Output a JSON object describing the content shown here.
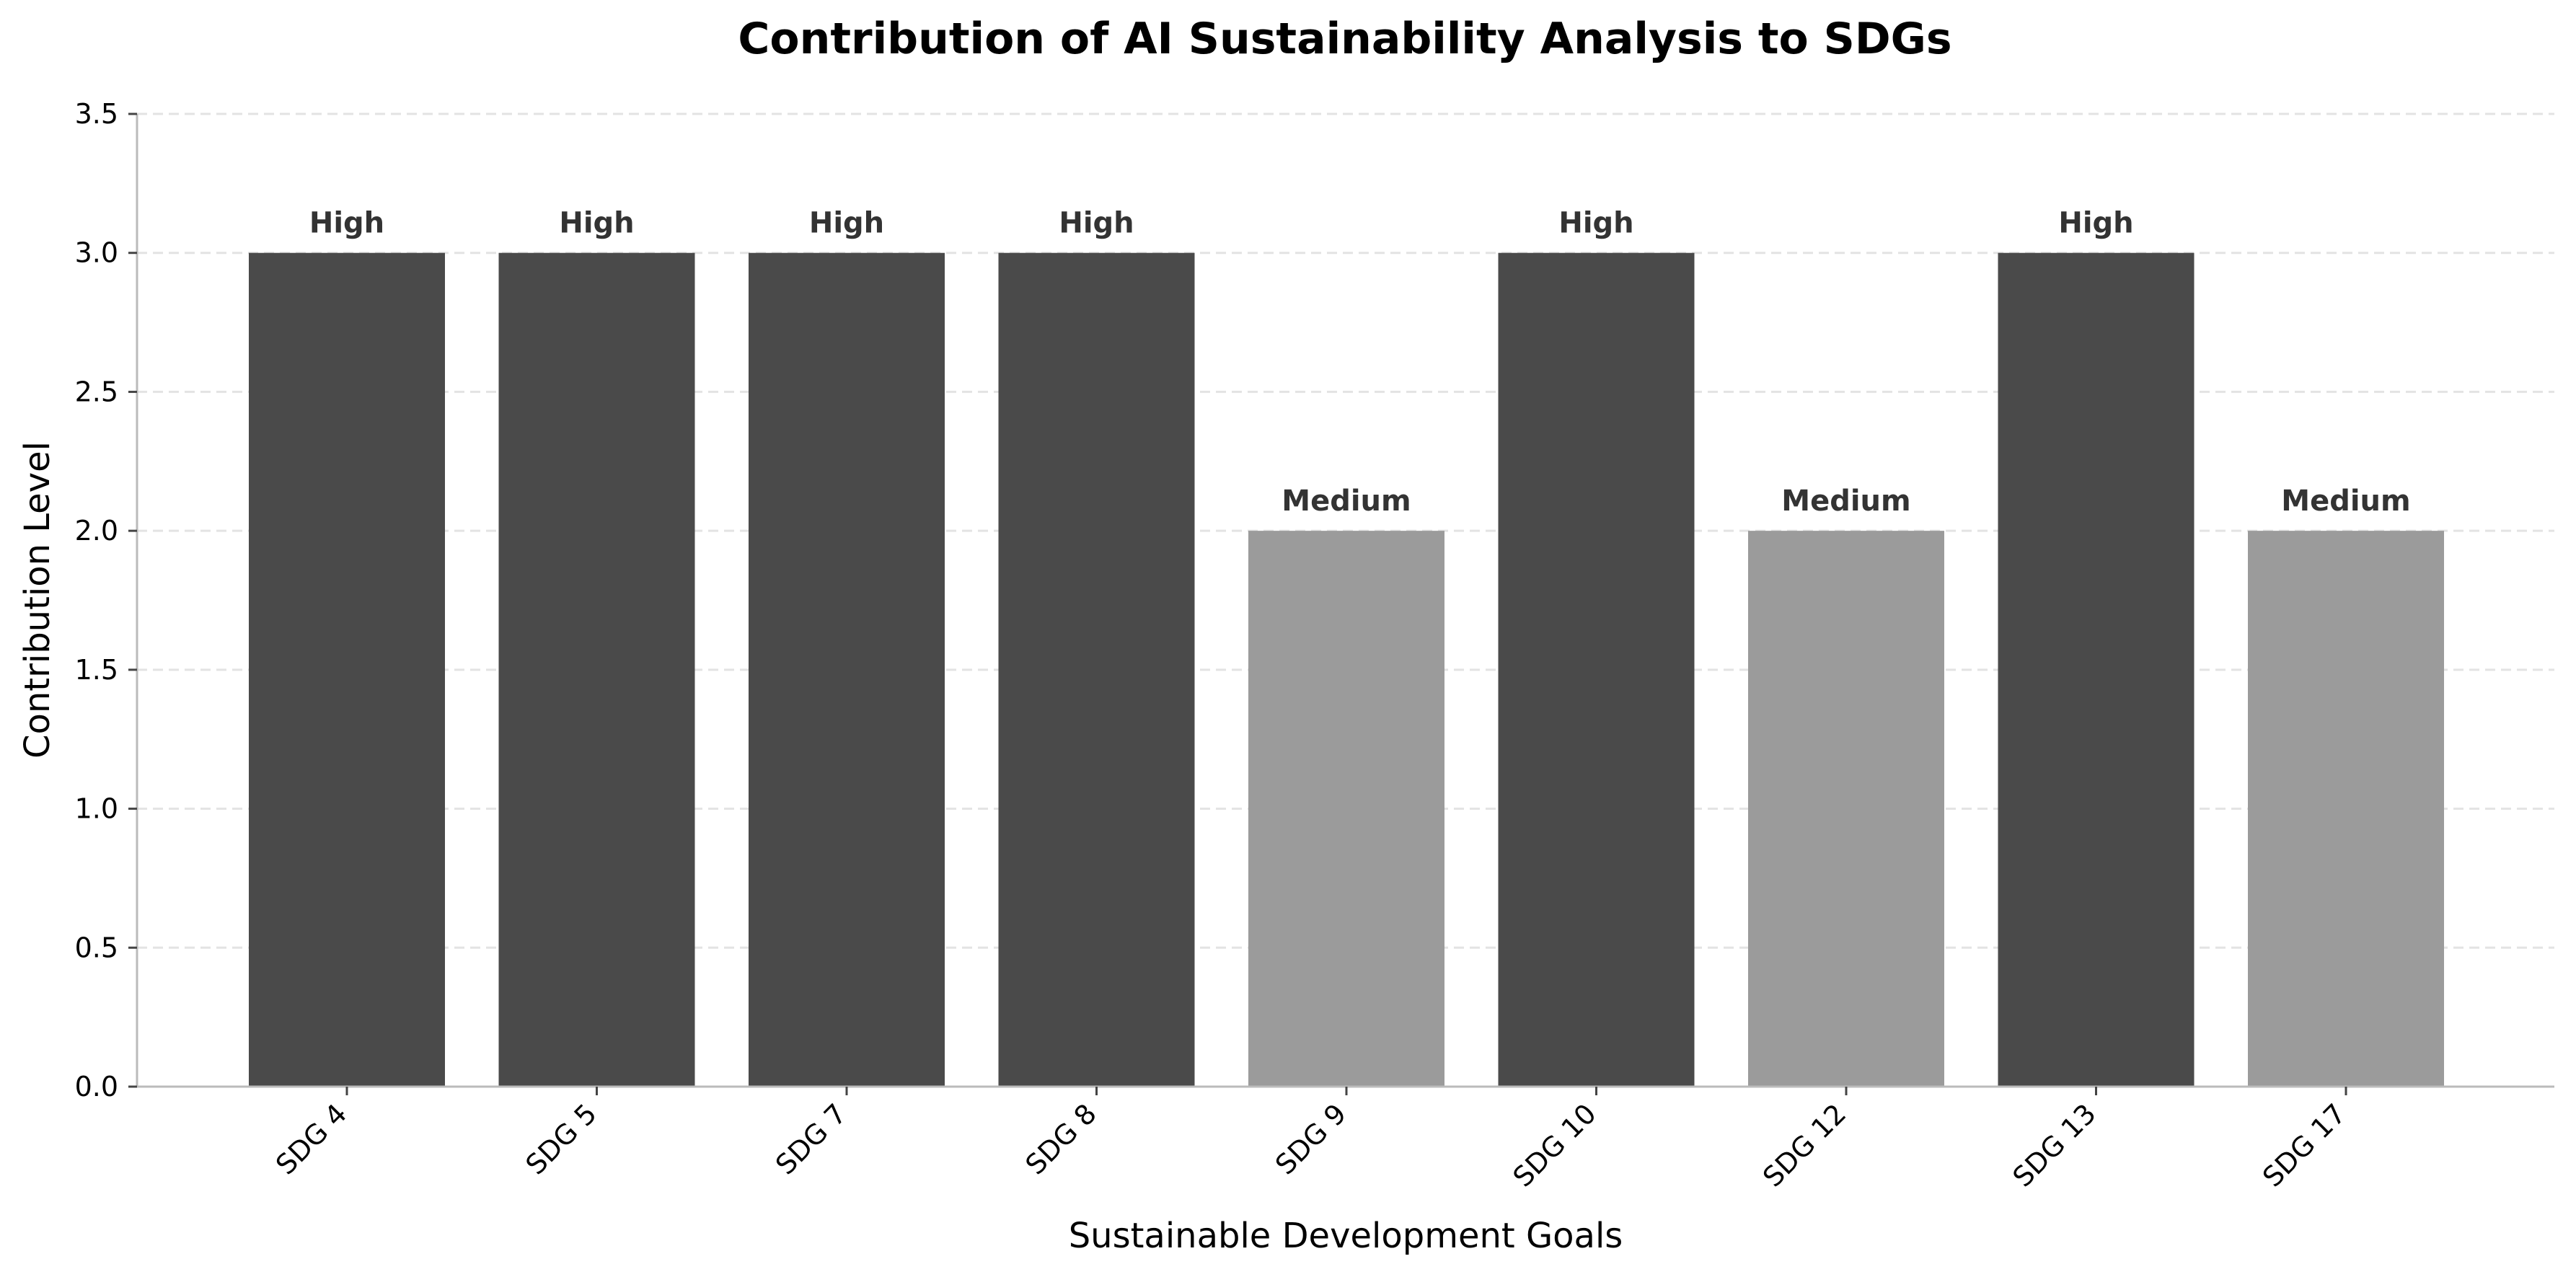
{
  "chart_data": {
    "type": "bar",
    "title": "Contribution of AI Sustainability Analysis to SDGs",
    "xlabel": "Sustainable Development Goals",
    "ylabel": "Contribution Level",
    "categories": [
      "SDG 4",
      "SDG 5",
      "SDG 7",
      "SDG 8",
      "SDG 9",
      "SDG 10",
      "SDG 12",
      "SDG 13",
      "SDG 17"
    ],
    "values": [
      3,
      3,
      3,
      3,
      2,
      3,
      2,
      3,
      2
    ],
    "labels": [
      "High",
      "High",
      "High",
      "High",
      "Medium",
      "High",
      "Medium",
      "High",
      "Medium"
    ],
    "ylim": [
      0,
      3.5
    ],
    "yticks": [
      0,
      0.5,
      1,
      1.5,
      2,
      2.5,
      3,
      3.5
    ],
    "ytick_labels": [
      "0.0",
      "0.5",
      "1.0",
      "1.5",
      "2.0",
      "2.5",
      "3.0",
      "3.5"
    ],
    "grid": true,
    "grid_axis": "y",
    "colors": {
      "High": "#4a4a4a",
      "Medium": "#9b9b9b"
    }
  }
}
